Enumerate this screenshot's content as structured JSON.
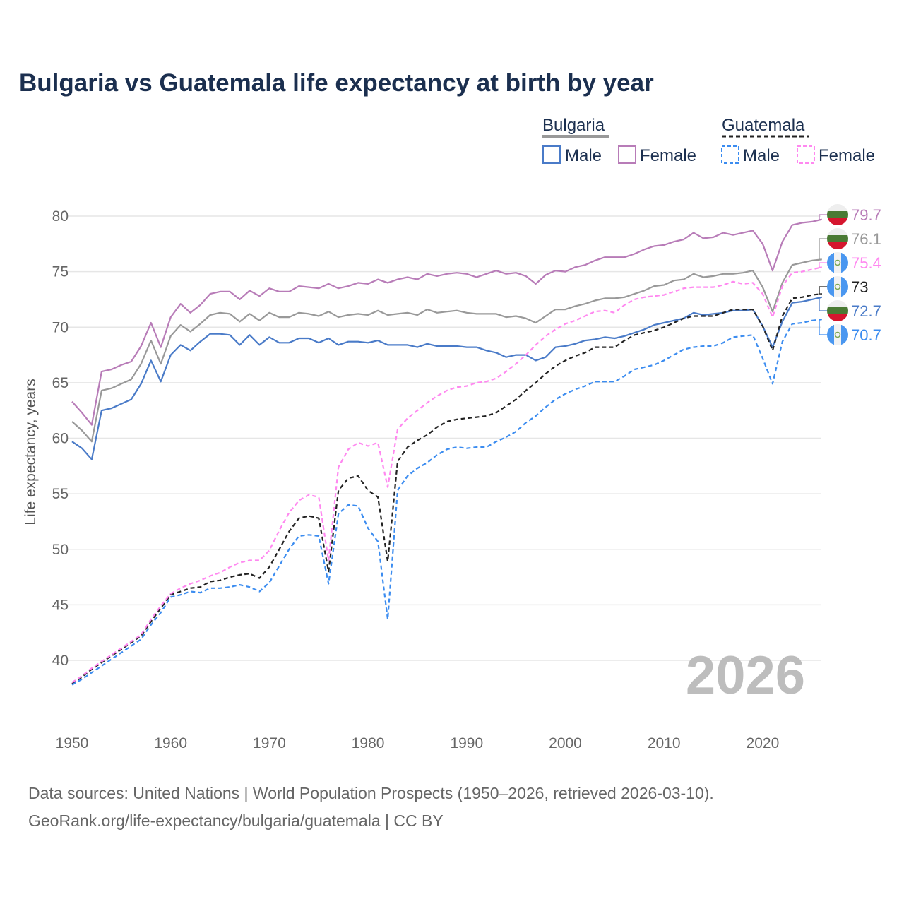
{
  "chart_data": {
    "type": "line",
    "title": "Bulgaria vs Guatemala life expectancy at birth by year",
    "xlabel": "",
    "ylabel": "Life expectancy, years",
    "xlim": [
      1950,
      2026
    ],
    "ylim": [
      37,
      81
    ],
    "x_ticks": [
      1950,
      1960,
      1970,
      1980,
      1990,
      2000,
      2010,
      2020
    ],
    "y_ticks": [
      40,
      45,
      50,
      55,
      60,
      65,
      70,
      75,
      80
    ],
    "grid": true,
    "legend": {
      "placement": "top-right",
      "groups": [
        {
          "country": "Bulgaria",
          "items": [
            "Male",
            "Female"
          ]
        },
        {
          "country": "Guatemala",
          "items": [
            "Male",
            "Female"
          ]
        }
      ]
    },
    "watermark_year": "2026",
    "x_start": 1950,
    "series": [
      {
        "name": "Bulgaria Female",
        "color": "#b87cb8",
        "dashed": false,
        "end_label": "79.7",
        "flag": "bulgaria",
        "values": [
          63.3,
          62.3,
          61.2,
          66.0,
          66.2,
          66.6,
          66.9,
          68.3,
          70.4,
          68.2,
          70.9,
          72.1,
          71.3,
          72.0,
          73.0,
          73.2,
          73.2,
          72.5,
          73.3,
          72.8,
          73.5,
          73.2,
          73.2,
          73.7,
          73.6,
          73.5,
          73.9,
          73.5,
          73.7,
          74.0,
          73.9,
          74.3,
          74.0,
          74.3,
          74.5,
          74.3,
          74.8,
          74.6,
          74.8,
          74.9,
          74.8,
          74.5,
          74.8,
          75.1,
          74.8,
          74.9,
          74.6,
          73.9,
          74.7,
          75.1,
          75.0,
          75.4,
          75.6,
          76.0,
          76.3,
          76.3,
          76.3,
          76.6,
          77.0,
          77.3,
          77.4,
          77.7,
          77.9,
          78.5,
          78.0,
          78.1,
          78.5,
          78.3,
          78.5,
          78.7,
          77.5,
          75.1,
          77.7,
          79.2,
          79.4,
          79.5,
          79.7
        ]
      },
      {
        "name": "Bulgaria",
        "color": "#999999",
        "dashed": false,
        "end_label": "76.1",
        "flag": "bulgaria",
        "values": [
          61.5,
          60.7,
          59.7,
          64.3,
          64.5,
          64.9,
          65.3,
          66.7,
          68.8,
          66.7,
          69.2,
          70.2,
          69.6,
          70.3,
          71.1,
          71.3,
          71.2,
          70.5,
          71.2,
          70.6,
          71.3,
          70.9,
          70.9,
          71.3,
          71.2,
          71.0,
          71.4,
          70.9,
          71.1,
          71.2,
          71.1,
          71.5,
          71.1,
          71.2,
          71.3,
          71.1,
          71.6,
          71.3,
          71.4,
          71.5,
          71.3,
          71.2,
          71.2,
          71.2,
          70.9,
          71.0,
          70.8,
          70.4,
          71.0,
          71.6,
          71.6,
          71.9,
          72.1,
          72.4,
          72.6,
          72.6,
          72.7,
          73.0,
          73.3,
          73.7,
          73.8,
          74.2,
          74.3,
          74.8,
          74.5,
          74.6,
          74.8,
          74.8,
          74.9,
          75.1,
          73.6,
          71.4,
          74.0,
          75.6,
          75.8,
          76.0,
          76.1
        ]
      },
      {
        "name": "Guatemala Female",
        "color": "#ff88f0",
        "dashed": true,
        "end_label": "75.4",
        "flag": "guatemala",
        "values": [
          38.0,
          38.6,
          39.3,
          39.9,
          40.5,
          41.1,
          41.7,
          42.3,
          43.7,
          44.9,
          46.0,
          46.5,
          46.9,
          47.2,
          47.6,
          47.9,
          48.4,
          48.8,
          49.0,
          49.0,
          49.9,
          51.7,
          53.3,
          54.4,
          54.9,
          54.7,
          49.0,
          57.4,
          59.0,
          59.6,
          59.3,
          59.6,
          55.6,
          60.8,
          61.8,
          62.5,
          63.2,
          63.8,
          64.3,
          64.6,
          64.7,
          65.0,
          65.1,
          65.4,
          66.0,
          66.7,
          67.5,
          68.4,
          69.2,
          69.8,
          70.3,
          70.6,
          71.0,
          71.4,
          71.5,
          71.3,
          72.0,
          72.5,
          72.7,
          72.8,
          72.9,
          73.2,
          73.5,
          73.6,
          73.6,
          73.6,
          73.8,
          74.1,
          73.9,
          74.0,
          73.0,
          70.9,
          73.7,
          74.9,
          75.0,
          75.2,
          75.4
        ]
      },
      {
        "name": "Guatemala",
        "color": "#222222",
        "dashed": true,
        "end_label": "73",
        "flag": "guatemala",
        "values": [
          37.9,
          38.5,
          39.2,
          39.8,
          40.4,
          41.0,
          41.6,
          42.2,
          43.5,
          44.7,
          45.9,
          46.2,
          46.5,
          46.6,
          47.1,
          47.2,
          47.5,
          47.7,
          47.8,
          47.4,
          48.4,
          50.0,
          51.6,
          52.8,
          53.0,
          52.8,
          48.0,
          55.3,
          56.4,
          56.6,
          55.3,
          54.7,
          48.9,
          57.9,
          59.2,
          59.8,
          60.3,
          61.0,
          61.5,
          61.7,
          61.8,
          61.9,
          62.0,
          62.3,
          62.9,
          63.5,
          64.3,
          65.0,
          65.8,
          66.5,
          67.0,
          67.4,
          67.7,
          68.2,
          68.2,
          68.2,
          68.8,
          69.3,
          69.5,
          69.7,
          70.0,
          70.4,
          70.8,
          71.0,
          71.0,
          71.0,
          71.3,
          71.6,
          71.6,
          71.6,
          70.1,
          67.9,
          71.0,
          72.6,
          72.7,
          72.9,
          73.0
        ]
      },
      {
        "name": "Bulgaria Male",
        "color": "#4a7bc8",
        "dashed": false,
        "end_label": "72.7",
        "flag": "bulgaria",
        "values": [
          59.7,
          59.1,
          58.1,
          62.5,
          62.7,
          63.1,
          63.5,
          64.9,
          67.0,
          65.1,
          67.5,
          68.4,
          67.9,
          68.7,
          69.4,
          69.4,
          69.3,
          68.4,
          69.3,
          68.4,
          69.1,
          68.6,
          68.6,
          69.0,
          69.0,
          68.6,
          69.0,
          68.4,
          68.7,
          68.7,
          68.6,
          68.8,
          68.4,
          68.4,
          68.4,
          68.2,
          68.5,
          68.3,
          68.3,
          68.3,
          68.2,
          68.2,
          67.9,
          67.7,
          67.3,
          67.5,
          67.5,
          67.0,
          67.3,
          68.2,
          68.3,
          68.5,
          68.8,
          68.9,
          69.1,
          69.0,
          69.2,
          69.5,
          69.8,
          70.2,
          70.4,
          70.6,
          70.8,
          71.3,
          71.1,
          71.2,
          71.3,
          71.5,
          71.5,
          71.6,
          70.1,
          68.2,
          70.5,
          72.2,
          72.3,
          72.5,
          72.7
        ]
      },
      {
        "name": "Guatemala Male",
        "color": "#3b8cf0",
        "dashed": true,
        "end_label": "70.7",
        "flag": "guatemala",
        "values": [
          37.8,
          38.3,
          38.9,
          39.5,
          40.1,
          40.7,
          41.3,
          41.9,
          43.2,
          44.3,
          45.7,
          45.9,
          46.2,
          46.1,
          46.5,
          46.5,
          46.6,
          46.8,
          46.6,
          46.2,
          47.0,
          48.5,
          50.0,
          51.2,
          51.3,
          51.2,
          46.9,
          53.2,
          54.0,
          53.9,
          51.9,
          50.7,
          43.7,
          55.3,
          56.6,
          57.3,
          57.8,
          58.5,
          59.0,
          59.2,
          59.1,
          59.2,
          59.2,
          59.7,
          60.1,
          60.6,
          61.4,
          62.0,
          62.8,
          63.5,
          64.0,
          64.4,
          64.7,
          65.1,
          65.1,
          65.1,
          65.6,
          66.2,
          66.4,
          66.6,
          67.0,
          67.5,
          68.0,
          68.2,
          68.3,
          68.3,
          68.6,
          69.1,
          69.2,
          69.3,
          67.2,
          64.9,
          68.7,
          70.3,
          70.4,
          70.6,
          70.7
        ]
      }
    ],
    "source_lines": [
      "Data sources: United Nations | World Population Prospects (1950–2026, retrieved 2026-03-10).",
      "GeoRank.org/life-expectancy/bulgaria/guatemala | CC BY"
    ]
  }
}
